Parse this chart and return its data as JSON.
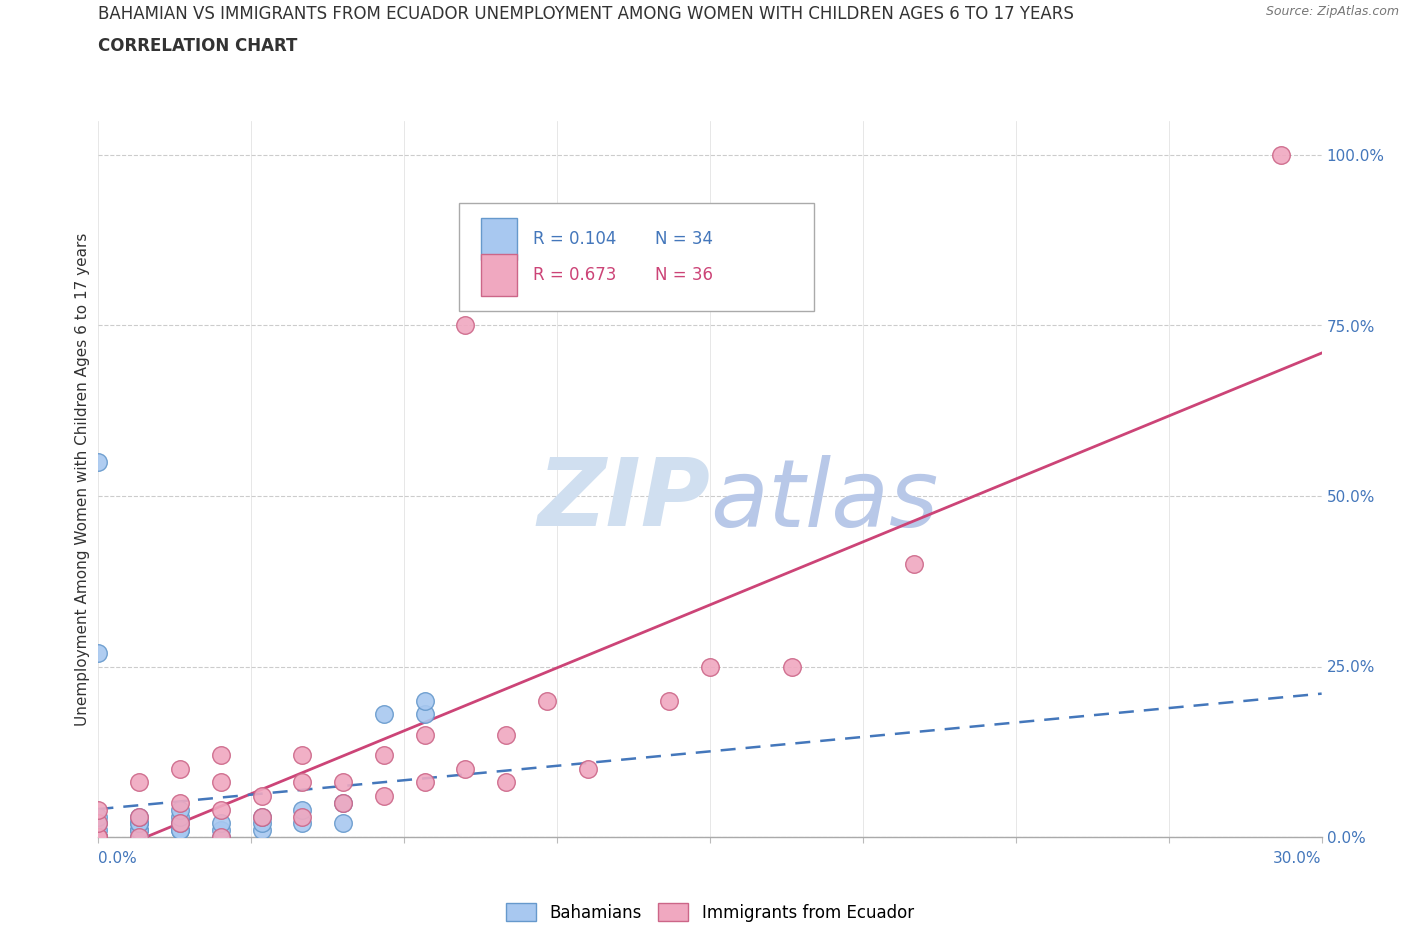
{
  "title_line1": "BAHAMIAN VS IMMIGRANTS FROM ECUADOR UNEMPLOYMENT AMONG WOMEN WITH CHILDREN AGES 6 TO 17 YEARS",
  "title_line2": "CORRELATION CHART",
  "source": "Source: ZipAtlas.com",
  "xlabel_bottom_left": "0.0%",
  "xlabel_bottom_right": "30.0%",
  "ylabel": "Unemployment Among Women with Children Ages 6 to 17 years",
  "yticks": [
    0.0,
    0.25,
    0.5,
    0.75,
    1.0
  ],
  "ytick_labels": [
    "0.0%",
    "25.0%",
    "50.0%",
    "75.0%",
    "100.0%"
  ],
  "xlim": [
    0.0,
    0.3
  ],
  "ylim": [
    0.0,
    1.05
  ],
  "blue_color": "#a8c8f0",
  "blue_edge": "#6699cc",
  "pink_color": "#f0a8c0",
  "pink_edge": "#cc6688",
  "blue_line_color": "#4477bb",
  "pink_line_color": "#cc4477",
  "watermark_color": "#d0dff0",
  "bahamian_x": [
    0.0,
    0.0,
    0.0,
    0.0,
    0.0,
    0.0,
    0.0,
    0.0,
    0.0,
    0.01,
    0.01,
    0.01,
    0.01,
    0.01,
    0.01,
    0.01,
    0.02,
    0.02,
    0.02,
    0.02,
    0.02,
    0.03,
    0.03,
    0.03,
    0.04,
    0.04,
    0.04,
    0.05,
    0.05,
    0.06,
    0.06,
    0.07,
    0.08,
    0.08
  ],
  "bahamian_y": [
    0.0,
    0.0,
    0.0,
    0.0,
    0.01,
    0.02,
    0.03,
    0.55,
    0.27,
    0.0,
    0.0,
    0.01,
    0.01,
    0.02,
    0.02,
    0.03,
    0.01,
    0.01,
    0.02,
    0.03,
    0.04,
    0.0,
    0.01,
    0.02,
    0.01,
    0.02,
    0.03,
    0.02,
    0.04,
    0.02,
    0.05,
    0.18,
    0.18,
    0.2
  ],
  "ecuador_x": [
    0.0,
    0.0,
    0.0,
    0.0,
    0.01,
    0.01,
    0.01,
    0.02,
    0.02,
    0.02,
    0.03,
    0.03,
    0.03,
    0.03,
    0.04,
    0.04,
    0.05,
    0.05,
    0.05,
    0.06,
    0.06,
    0.07,
    0.07,
    0.08,
    0.08,
    0.09,
    0.09,
    0.1,
    0.1,
    0.11,
    0.12,
    0.14,
    0.15,
    0.17,
    0.2,
    0.29
  ],
  "ecuador_y": [
    0.0,
    0.0,
    0.02,
    0.04,
    0.0,
    0.03,
    0.08,
    0.02,
    0.05,
    0.1,
    0.0,
    0.04,
    0.08,
    0.12,
    0.03,
    0.06,
    0.03,
    0.08,
    0.12,
    0.05,
    0.08,
    0.06,
    0.12,
    0.08,
    0.15,
    0.1,
    0.75,
    0.08,
    0.15,
    0.2,
    0.1,
    0.2,
    0.25,
    0.25,
    0.4,
    1.0
  ]
}
